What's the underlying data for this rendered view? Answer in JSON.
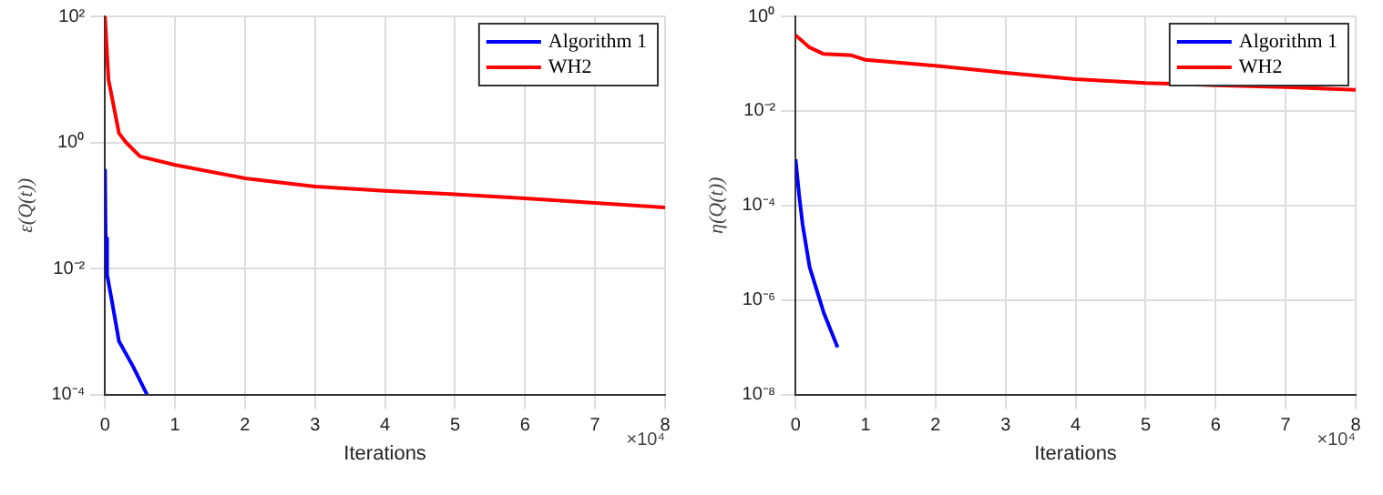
{
  "chart_data": [
    {
      "type": "line",
      "xlabel": "Iterations",
      "ylabel": "ε(Q(t))",
      "log": "y",
      "grid": true,
      "legend": "top right",
      "marker": "none",
      "line_style": "solid",
      "xlim": [
        0,
        8
      ],
      "xticks": [
        0,
        1,
        2,
        3,
        4,
        5,
        6,
        7,
        8
      ],
      "ylim": [
        0.0001,
        100
      ],
      "yticks": [
        {
          "value": 0.0001,
          "label": "10⁻⁴"
        },
        {
          "value": 0.01,
          "label": "10⁻²"
        },
        {
          "value": 1,
          "label": "10⁰"
        },
        {
          "value": 100,
          "label": "10²"
        }
      ],
      "annotations": [
        "×10⁴"
      ],
      "series": [
        {
          "name": "Algorithm 1",
          "color": "#0000ff",
          "x": [
            0,
            0.01,
            0.03,
            0.1,
            0.2,
            0.4,
            0.6
          ],
          "values": [
            0.38,
            0.03,
            0.008,
            0.003,
            0.0007,
            0.00028,
            0.0001
          ]
        },
        {
          "name": "WH2",
          "color": "#ff0000",
          "x": [
            0,
            0.05,
            0.2,
            0.3,
            0.5,
            1,
            2,
            3,
            4,
            5,
            6,
            7,
            8
          ],
          "values": [
            100,
            10,
            1.4,
            1,
            0.6,
            0.44,
            0.27,
            0.2,
            0.17,
            0.15,
            0.13,
            0.11,
            0.093
          ]
        }
      ]
    },
    {
      "type": "line",
      "xlabel": "Iterations",
      "ylabel": "η(Q(t))",
      "log": "y",
      "grid": true,
      "legend": "top right",
      "marker": "none",
      "line_style": "solid",
      "xlim": [
        0,
        8
      ],
      "xticks": [
        0,
        1,
        2,
        3,
        4,
        5,
        6,
        7,
        8
      ],
      "ylim": [
        1e-08,
        1
      ],
      "yticks": [
        {
          "value": 1e-08,
          "label": "10⁻⁸"
        },
        {
          "value": 1e-06,
          "label": "10⁻⁶"
        },
        {
          "value": 0.0001,
          "label": "10⁻⁴"
        },
        {
          "value": 0.01,
          "label": "10⁻²"
        },
        {
          "value": 1,
          "label": "10⁰"
        }
      ],
      "annotations": [
        "×10⁴"
      ],
      "series": [
        {
          "name": "Algorithm 1",
          "color": "#0000ff",
          "x": [
            0,
            0.05,
            0.1,
            0.2,
            0.4,
            0.6
          ],
          "values": [
            0.00095,
            0.00017,
            4e-05,
            5e-06,
            5.5e-07,
            1e-07
          ]
        },
        {
          "name": "WH2",
          "color": "#ff0000",
          "x": [
            0,
            0.2,
            0.4,
            0.8,
            1,
            2,
            3,
            4,
            5,
            6,
            7,
            8
          ],
          "values": [
            0.4,
            0.22,
            0.16,
            0.15,
            0.12,
            0.09,
            0.064,
            0.047,
            0.039,
            0.035,
            0.032,
            0.028
          ]
        }
      ]
    }
  ]
}
